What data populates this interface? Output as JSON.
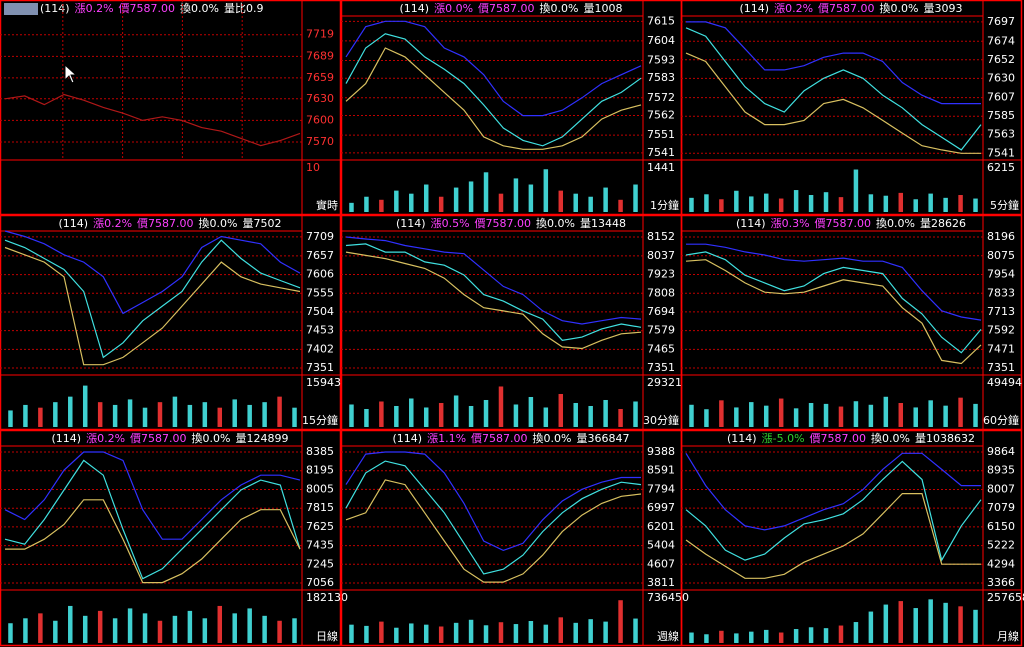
{
  "chart_data": [
    {
      "type": "line",
      "code": "(114)",
      "change": "漲0.2%",
      "change_color": "#ff40ff",
      "price": "價7587.00",
      "turnover": "換0.0%",
      "volume_text": "量比0.9",
      "period": "實時",
      "tick_color": "#ff3030",
      "vertical_grid": true,
      "ylim": [
        7545,
        7745
      ],
      "yticks": [
        7719,
        7689,
        7659,
        7630,
        7600,
        7570
      ],
      "series": [
        {
          "color": "#b01818",
          "values": [
            7630,
            7634,
            7622,
            7636,
            7628,
            7618,
            7610,
            7600,
            7605,
            7600,
            7590,
            7585,
            7575,
            7565,
            7572,
            7582
          ]
        }
      ],
      "vlim": [
        0,
        10
      ],
      "vticks": [
        10
      ],
      "volume_values": []
    },
    {
      "type": "line",
      "code": "(114)",
      "change": "漲0.0%",
      "change_color": "#ff40ff",
      "price": "價7587.00",
      "turnover": "換0.0%",
      "volume_text": "量1008",
      "period": "1分鐘",
      "tick_color": "#ffffff",
      "vertical_grid": false,
      "ylim": [
        7537,
        7618
      ],
      "yticks": [
        7615,
        7604,
        7593,
        7583,
        7572,
        7562,
        7551,
        7541
      ],
      "series": [
        {
          "color": "#40e0e0",
          "values": [
            7580,
            7600,
            7608,
            7605,
            7595,
            7588,
            7580,
            7568,
            7555,
            7548,
            7545,
            7550,
            7560,
            7570,
            7575,
            7583
          ]
        },
        {
          "color": "#3030ff",
          "values": [
            7595,
            7612,
            7615,
            7615,
            7612,
            7600,
            7595,
            7585,
            7570,
            7562,
            7562,
            7565,
            7572,
            7580,
            7585,
            7590
          ]
        },
        {
          "color": "#d8c060",
          "values": [
            7570,
            7580,
            7600,
            7595,
            7585,
            7575,
            7565,
            7550,
            7545,
            7543,
            7543,
            7545,
            7550,
            7560,
            7565,
            7568
          ]
        }
      ],
      "vlim": [
        0,
        1441
      ],
      "vticks": [
        1441
      ],
      "volume_values": [
        300,
        500,
        400,
        700,
        600,
        900,
        500,
        800,
        1000,
        1300,
        600,
        1100,
        900,
        1400,
        700,
        600,
        500,
        800,
        400,
        900
      ]
    },
    {
      "type": "line",
      "code": "(114)",
      "change": "漲0.2%",
      "change_color": "#ff40ff",
      "price": "價7587.00",
      "turnover": "換0.0%",
      "volume_text": "量3093",
      "period": "5分鐘",
      "tick_color": "#ffffff",
      "vertical_grid": false,
      "ylim": [
        7533,
        7704
      ],
      "yticks": [
        7697,
        7674,
        7652,
        7630,
        7607,
        7585,
        7563,
        7541
      ],
      "series": [
        {
          "color": "#40e0e0",
          "values": [
            7690,
            7680,
            7650,
            7620,
            7600,
            7590,
            7615,
            7630,
            7640,
            7630,
            7610,
            7595,
            7575,
            7560,
            7545,
            7575
          ]
        },
        {
          "color": "#3030ff",
          "values": [
            7697,
            7697,
            7690,
            7665,
            7640,
            7640,
            7645,
            7655,
            7660,
            7660,
            7650,
            7625,
            7610,
            7600,
            7600,
            7600
          ]
        },
        {
          "color": "#d8c060",
          "values": [
            7660,
            7650,
            7620,
            7590,
            7575,
            7575,
            7580,
            7600,
            7605,
            7595,
            7580,
            7565,
            7550,
            7545,
            7541,
            7541
          ]
        }
      ],
      "vlim": [
        0,
        6215
      ],
      "vticks": [
        6215
      ],
      "volume_values": [
        2000,
        2500,
        1800,
        3000,
        2200,
        2600,
        1900,
        3100,
        2400,
        2800,
        2100,
        6000,
        2500,
        2300,
        2700,
        1800,
        2600,
        2000,
        2400,
        1900
      ]
    },
    {
      "type": "line",
      "code": "(114)",
      "change": "漲0.2%",
      "change_color": "#ff40ff",
      "price": "價7587.00",
      "turnover": "換0.0%",
      "volume_text": "量7502",
      "period": "15分鐘",
      "tick_color": "#ffffff",
      "vertical_grid": false,
      "ylim": [
        7332,
        7725
      ],
      "yticks": [
        7709,
        7657,
        7606,
        7555,
        7504,
        7453,
        7402,
        7351
      ],
      "series": [
        {
          "color": "#40e0e0",
          "values": [
            7700,
            7680,
            7650,
            7620,
            7560,
            7380,
            7420,
            7480,
            7520,
            7560,
            7640,
            7700,
            7650,
            7610,
            7590,
            7570
          ]
        },
        {
          "color": "#3030ff",
          "values": [
            7725,
            7710,
            7690,
            7660,
            7640,
            7600,
            7500,
            7530,
            7560,
            7600,
            7680,
            7710,
            7700,
            7690,
            7640,
            7610
          ]
        },
        {
          "color": "#d8c060",
          "values": [
            7680,
            7660,
            7640,
            7600,
            7360,
            7360,
            7380,
            7420,
            7460,
            7520,
            7580,
            7640,
            7600,
            7580,
            7570,
            7560
          ]
        }
      ],
      "vlim": [
        0,
        15943
      ],
      "vticks": [
        15943
      ],
      "volume_values": [
        6000,
        8000,
        7000,
        9000,
        11000,
        15000,
        9000,
        8000,
        10000,
        7000,
        9000,
        11000,
        8000,
        9000,
        7000,
        10000,
        8000,
        9000,
        11000,
        7000
      ]
    },
    {
      "type": "line",
      "code": "(114)",
      "change": "漲0.5%",
      "change_color": "#ff40ff",
      "price": "價7587.00",
      "turnover": "換0.0%",
      "volume_text": "量13448",
      "period": "30分鐘",
      "tick_color": "#ffffff",
      "vertical_grid": false,
      "ylim": [
        7308,
        8189
      ],
      "yticks": [
        8152,
        8037,
        7923,
        7808,
        7694,
        7579,
        7465,
        7351
      ],
      "series": [
        {
          "color": "#40e0e0",
          "values": [
            8100,
            8110,
            8060,
            8060,
            8000,
            7980,
            7920,
            7800,
            7760,
            7700,
            7650,
            7520,
            7540,
            7590,
            7620,
            7600
          ]
        },
        {
          "color": "#3030ff",
          "values": [
            8152,
            8140,
            8130,
            8100,
            8080,
            8060,
            8050,
            7950,
            7850,
            7800,
            7700,
            7640,
            7620,
            7640,
            7660,
            7650
          ]
        },
        {
          "color": "#d8c060",
          "values": [
            8060,
            8040,
            8020,
            7990,
            7960,
            7900,
            7800,
            7720,
            7700,
            7680,
            7560,
            7480,
            7470,
            7520,
            7560,
            7570
          ]
        }
      ],
      "vlim": [
        0,
        29321
      ],
      "vticks": [
        29321
      ],
      "volume_values": [
        15000,
        12000,
        17000,
        14000,
        19000,
        13000,
        16000,
        21000,
        14000,
        18000,
        27000,
        15000,
        20000,
        13000,
        22000,
        16000,
        14000,
        18000,
        12000,
        17000
      ]
    },
    {
      "type": "line",
      "code": "(114)",
      "change": "漲0.3%",
      "change_color": "#ff40ff",
      "price": "價7587.00",
      "turnover": "換0.0%",
      "volume_text": "量28626",
      "period": "60分鐘",
      "tick_color": "#ffffff",
      "vertical_grid": false,
      "ylim": [
        7306,
        8235
      ],
      "yticks": [
        8196,
        8075,
        7954,
        7833,
        7713,
        7592,
        7471,
        7351
      ],
      "series": [
        {
          "color": "#40e0e0",
          "values": [
            8080,
            8100,
            8050,
            7950,
            7900,
            7850,
            7880,
            7960,
            8000,
            7980,
            7960,
            7800,
            7700,
            7550,
            7450,
            7600
          ]
        },
        {
          "color": "#3030ff",
          "values": [
            8150,
            8150,
            8130,
            8100,
            8080,
            8050,
            8040,
            8050,
            8060,
            8040,
            8040,
            8000,
            7850,
            7720,
            7680,
            7660
          ]
        },
        {
          "color": "#d8c060",
          "values": [
            8040,
            8050,
            7980,
            7900,
            7840,
            7830,
            7840,
            7880,
            7920,
            7900,
            7880,
            7740,
            7640,
            7400,
            7380,
            7500
          ]
        }
      ],
      "vlim": [
        0,
        49494
      ],
      "vticks": [
        49494
      ],
      "volume_values": [
        25000,
        20000,
        30000,
        22000,
        28000,
        24000,
        32000,
        21000,
        27000,
        26000,
        23000,
        29000,
        25000,
        34000,
        27000,
        22000,
        30000,
        24000,
        33000,
        26000
      ]
    },
    {
      "type": "line",
      "code": "(114)",
      "change": "漲0.2%",
      "change_color": "#ff40ff",
      "price": "價7587.00",
      "turnover": "換0.0%",
      "volume_text": "量124899",
      "period": "日線",
      "tick_color": "#ffffff",
      "vertical_grid": false,
      "ylim": [
        6985,
        8446
      ],
      "yticks": [
        8385,
        8195,
        8005,
        7815,
        7625,
        7435,
        7245,
        7056
      ],
      "series": [
        {
          "color": "#40e0e0",
          "values": [
            7500,
            7450,
            7700,
            8000,
            8300,
            8150,
            7600,
            7100,
            7200,
            7400,
            7600,
            7800,
            8000,
            8100,
            8050,
            7400
          ]
        },
        {
          "color": "#3030ff",
          "values": [
            7800,
            7700,
            7900,
            8200,
            8385,
            8385,
            8300,
            7800,
            7500,
            7500,
            7700,
            7900,
            8050,
            8150,
            8150,
            8100
          ]
        },
        {
          "color": "#d8c060",
          "values": [
            7400,
            7400,
            7500,
            7650,
            7900,
            7900,
            7500,
            7060,
            7060,
            7150,
            7300,
            7500,
            7700,
            7800,
            7800,
            7400
          ]
        }
      ],
      "vlim": [
        0,
        182130
      ],
      "vticks": [
        182130
      ],
      "volume_values": [
        80000,
        100000,
        120000,
        90000,
        150000,
        110000,
        130000,
        100000,
        140000,
        120000,
        90000,
        110000,
        130000,
        100000,
        150000,
        120000,
        140000,
        110000,
        90000,
        100000
      ]
    },
    {
      "type": "line",
      "code": "(114)",
      "change": "漲1.1%",
      "change_color": "#ff40ff",
      "price": "價7587.00",
      "turnover": "換0.0%",
      "volume_text": "量366847",
      "period": "週線",
      "tick_color": "#ffffff",
      "vertical_grid": false,
      "ylim": [
        3513,
        9643
      ],
      "yticks": [
        9388,
        8591,
        7794,
        6997,
        6201,
        5404,
        4607,
        3811
      ],
      "series": [
        {
          "color": "#40e0e0",
          "values": [
            7000,
            8500,
            9000,
            8800,
            7800,
            6800,
            5500,
            4200,
            4400,
            5000,
            6000,
            6800,
            7400,
            7800,
            8100,
            8000
          ]
        },
        {
          "color": "#3030ff",
          "values": [
            8000,
            9300,
            9388,
            9388,
            9300,
            8500,
            7200,
            5600,
            5200,
            5500,
            6500,
            7300,
            7800,
            8100,
            8300,
            8300
          ]
        },
        {
          "color": "#d8c060",
          "values": [
            6500,
            6800,
            8200,
            8000,
            6800,
            5600,
            4400,
            3850,
            3850,
            4200,
            5000,
            6000,
            6700,
            7200,
            7500,
            7600
          ]
        }
      ],
      "vlim": [
        0,
        736450
      ],
      "vticks": [
        736450
      ],
      "volume_values": [
        300000,
        280000,
        350000,
        250000,
        320000,
        300000,
        270000,
        330000,
        380000,
        290000,
        340000,
        310000,
        360000,
        300000,
        420000,
        330000,
        390000,
        350000,
        700000,
        400000
      ]
    },
    {
      "type": "line",
      "code": "(114)",
      "change": "漲-5.0%",
      "change_color": "#30d030",
      "price": "價7587.00",
      "turnover": "換0.0%",
      "volume_text": "量1038632",
      "period": "月線",
      "tick_color": "#ffffff",
      "vertical_grid": false,
      "ylim": [
        3019,
        10162
      ],
      "yticks": [
        9864,
        8935,
        8007,
        7079,
        6150,
        5222,
        4294,
        3366
      ],
      "series": [
        {
          "color": "#40e0e0",
          "values": [
            7000,
            6200,
            5000,
            4500,
            4800,
            5600,
            6300,
            6500,
            6800,
            7500,
            8500,
            9400,
            8500,
            4500,
            6200,
            7500
          ]
        },
        {
          "color": "#3030ff",
          "values": [
            9800,
            8200,
            7000,
            6200,
            6000,
            6200,
            6600,
            7000,
            7300,
            8000,
            9000,
            9800,
            9800,
            9000,
            8200,
            8200
          ]
        },
        {
          "color": "#d8c060",
          "values": [
            5500,
            4800,
            4200,
            3600,
            3600,
            3800,
            4400,
            4800,
            5200,
            5800,
            6800,
            7800,
            7800,
            4300,
            4300,
            4300
          ]
        }
      ],
      "vlim": [
        0,
        257658
      ],
      "vticks": [
        257658
      ],
      "volume_values": [
        60000,
        50000,
        70000,
        55000,
        65000,
        75000,
        60000,
        80000,
        90000,
        85000,
        100000,
        120000,
        180000,
        220000,
        240000,
        200000,
        250000,
        230000,
        210000,
        190000
      ]
    }
  ]
}
